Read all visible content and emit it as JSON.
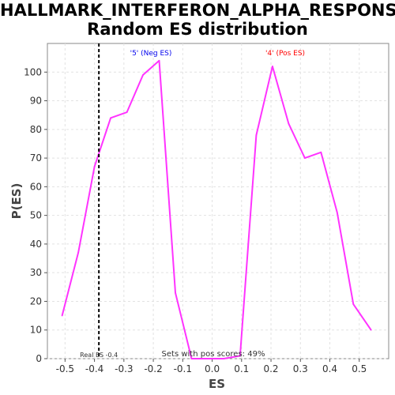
{
  "chart_data": {
    "type": "line",
    "title_line1": "HALLMARK_INTERFERON_ALPHA_RESPONSE:",
    "title_line2": "Random ES distribution",
    "xlabel": "ES",
    "ylabel": "P(ES)",
    "xlim": [
      -0.56,
      0.6
    ],
    "ylim": [
      0,
      110
    ],
    "xticks": [
      -0.5,
      -0.4,
      -0.3,
      -0.2,
      -0.1,
      0.0,
      0.1,
      0.2,
      0.3,
      0.4,
      0.5
    ],
    "xtick_labels": [
      "-0.5",
      "-0.4",
      "-0.3",
      "-0.2",
      "-0.1",
      "0.0",
      "0.1",
      "0.2",
      "0.3",
      "0.4",
      "0.5"
    ],
    "yticks": [
      0,
      10,
      20,
      30,
      40,
      50,
      60,
      70,
      80,
      90,
      100
    ],
    "grid": true,
    "series": [
      {
        "color": "#ff33ff",
        "x": [
          -0.51,
          -0.455,
          -0.4,
          -0.345,
          -0.29,
          -0.235,
          -0.18,
          -0.125,
          -0.07,
          -0.015,
          0.04,
          0.095,
          0.15,
          0.205,
          0.26,
          0.315,
          0.37,
          0.425,
          0.48,
          0.54
        ],
        "y": [
          15,
          37,
          67,
          84,
          86,
          99,
          104,
          23,
          0,
          0,
          0,
          1,
          78,
          102,
          82,
          70,
          72,
          51,
          19,
          10
        ]
      }
    ],
    "real_es": {
      "x": -0.385,
      "label": "Real ES -0.4"
    },
    "annotations": {
      "neg_label": "'5' (Neg ES)",
      "neg_color": "#0000ee",
      "pos_label": "'4' (Pos ES)",
      "pos_color": "#ff0000",
      "footer": "Sets with pos scores: 49%"
    }
  }
}
